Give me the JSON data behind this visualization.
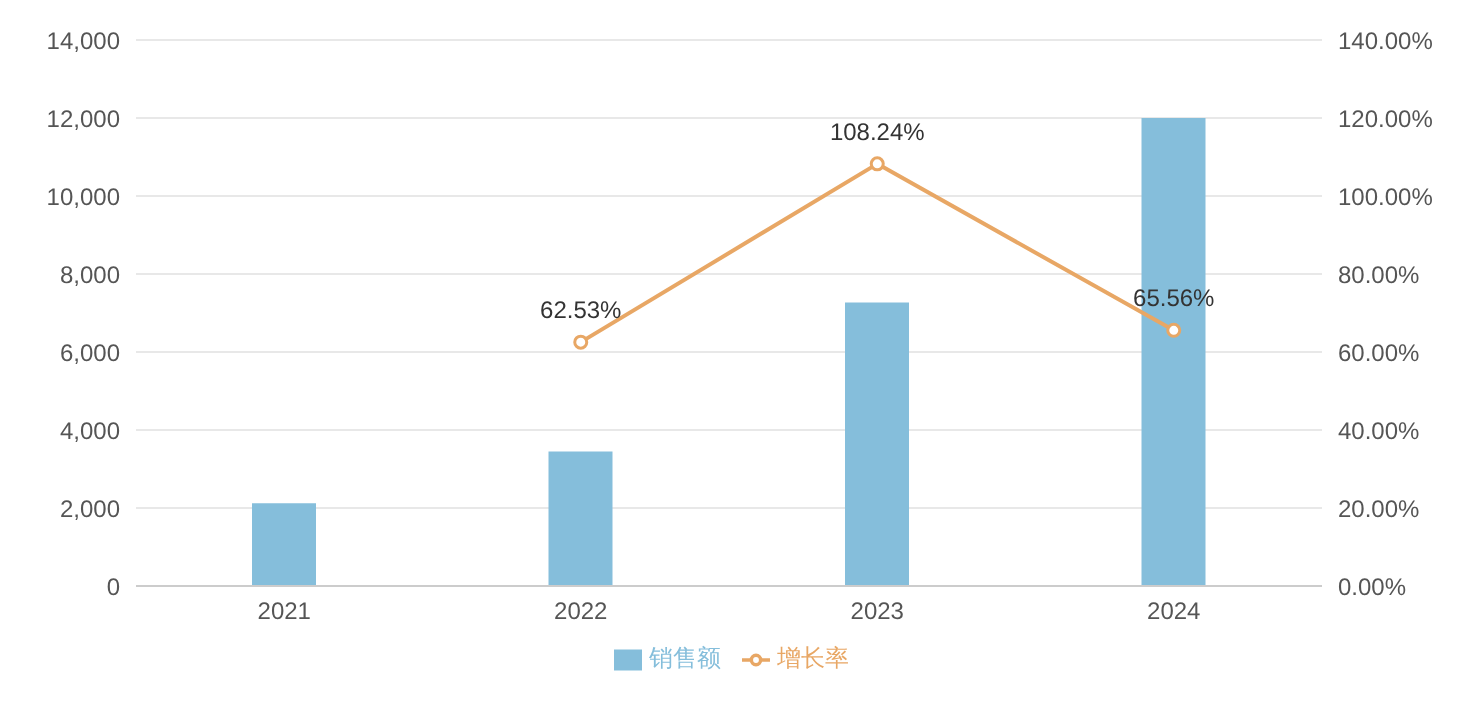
{
  "chart_data": {
    "type": "bar",
    "categories": [
      "2021",
      "2022",
      "2023",
      "2024"
    ],
    "series": [
      {
        "name": "销售额",
        "color": "#85bedb",
        "values": [
          2120,
          3450,
          7270,
          12000
        ]
      },
      {
        "name": "增长率",
        "type": "line",
        "axis": "y2",
        "color": "#e8a765",
        "values": [
          null,
          62.53,
          108.24,
          65.56
        ],
        "value_labels": [
          null,
          "62.53%",
          "108.24%",
          "65.56%"
        ]
      }
    ],
    "ylim": [
      0,
      14000
    ],
    "yticks": [
      0,
      {
        "value": 2000,
        "label": "2,000"
      },
      {
        "value": 4000,
        "label": "4,000"
      },
      {
        "value": 6000,
        "label": "6,000"
      },
      {
        "value": 8000,
        "label": "8,000"
      },
      {
        "value": 10000,
        "label": "10,000"
      },
      {
        "value": 12000,
        "label": "12,000"
      },
      {
        "value": 14000,
        "label": "14,000"
      }
    ],
    "y2lim": [
      0,
      140
    ],
    "y2ticks": [
      {
        "value": 0,
        "label": "0.00%"
      },
      {
        "value": 20,
        "label": "20.00%"
      },
      {
        "value": 40,
        "label": "40.00%"
      },
      {
        "value": 60,
        "label": "60.00%"
      },
      {
        "value": 80,
        "label": "80.00%"
      },
      {
        "value": 100,
        "label": "100.00%"
      },
      {
        "value": 120,
        "label": "120.00%"
      },
      {
        "value": 140,
        "label": "140.00%"
      }
    ],
    "grid": "y",
    "legend": "bottom",
    "marker": "circle",
    "line_style": "solid"
  }
}
